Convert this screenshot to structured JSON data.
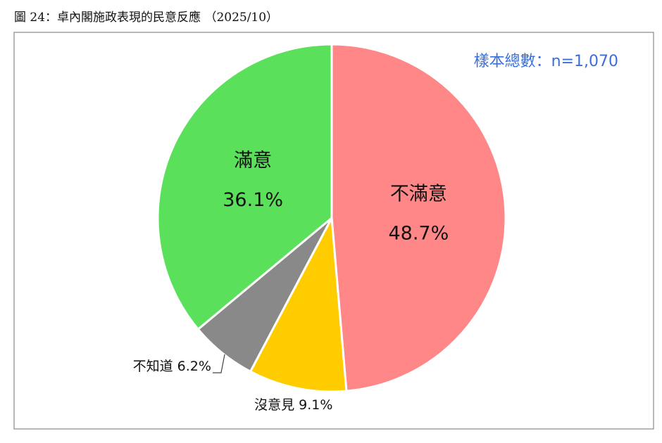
{
  "chart_data": {
    "type": "pie",
    "title": "圖 24：卓內閣施政表現的民意反應 （2025/10）",
    "annotation": "樣本總數：n=1,070",
    "categories": [
      "不滿意",
      "沒意見",
      "不知道",
      "滿意"
    ],
    "values": [
      48.7,
      9.1,
      6.2,
      36.1
    ],
    "value_labels": [
      "48.7%",
      "9.1%",
      "6.2%",
      "36.1%"
    ],
    "colors": [
      "#FF8787",
      "#FFCC00",
      "#898989",
      "#5BE05B"
    ]
  }
}
